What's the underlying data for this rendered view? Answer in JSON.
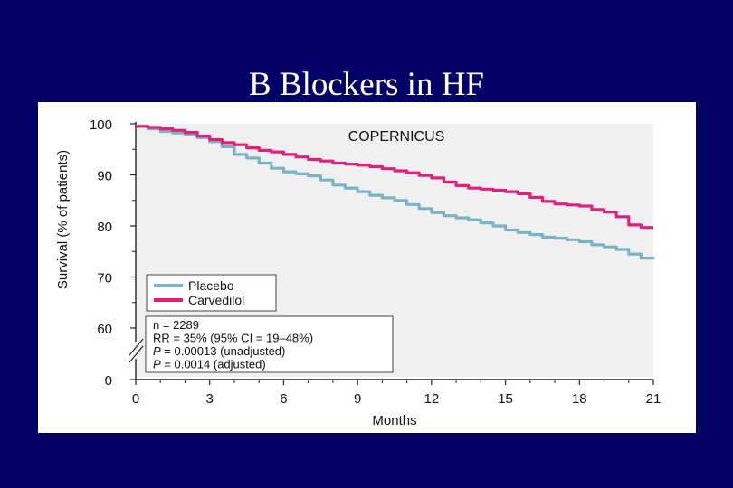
{
  "slide": {
    "title": "B Blockers in HF"
  },
  "chart_data": {
    "type": "line",
    "title": "COPERNICUS",
    "xlabel": "Months",
    "ylabel": "Survival (% of patients)",
    "x_ticks": [
      0,
      3,
      6,
      9,
      12,
      15,
      18,
      21
    ],
    "y_ticks": [
      0,
      60,
      70,
      80,
      90,
      100
    ],
    "xlim": [
      0,
      21
    ],
    "ylim_broken": [
      58,
      100
    ],
    "series": [
      {
        "name": "Placebo",
        "color": "#7ab4c4",
        "x": [
          0,
          0.5,
          1,
          1.5,
          2,
          2.5,
          3,
          3.5,
          4,
          4.5,
          5,
          5.5,
          6,
          6.5,
          7,
          7.5,
          8,
          8.5,
          9,
          9.5,
          10,
          10.5,
          11,
          11.5,
          12,
          12.5,
          13,
          13.5,
          14,
          14.5,
          15,
          15.5,
          16,
          16.5,
          17,
          17.5,
          18,
          18.5,
          19,
          19.5,
          20,
          20.5,
          21
        ],
        "y": [
          99.5,
          99.0,
          98.5,
          98.2,
          97.9,
          97.3,
          96.5,
          95.5,
          94.0,
          93.3,
          92.3,
          91.3,
          90.6,
          90.2,
          89.8,
          89.0,
          88.0,
          87.4,
          86.7,
          86.0,
          85.5,
          85.0,
          84.2,
          83.4,
          82.6,
          82.0,
          81.6,
          81.2,
          80.6,
          80.0,
          79.2,
          78.7,
          78.3,
          77.8,
          77.6,
          77.3,
          76.9,
          76.3,
          75.9,
          75.4,
          74.5,
          73.7,
          73.5
        ]
      },
      {
        "name": "Carvedilol",
        "color": "#e0207a",
        "x": [
          0,
          0.5,
          1,
          1.5,
          2,
          2.5,
          3,
          3.5,
          4,
          4.5,
          5,
          5.5,
          6,
          6.5,
          7,
          7.5,
          8,
          8.5,
          9,
          9.5,
          10,
          10.5,
          11,
          11.5,
          12,
          12.5,
          13,
          13.5,
          14,
          14.5,
          15,
          15.5,
          16,
          16.5,
          17,
          17.5,
          18,
          18.5,
          19,
          19.5,
          20,
          20.5,
          21
        ],
        "y": [
          99.5,
          99.3,
          99.0,
          98.7,
          98.3,
          97.6,
          96.9,
          96.3,
          95.9,
          95.3,
          94.8,
          94.5,
          94.0,
          93.5,
          93.0,
          92.7,
          92.3,
          92.1,
          91.9,
          91.6,
          91.2,
          90.8,
          90.4,
          89.9,
          89.4,
          88.6,
          87.9,
          87.4,
          87.2,
          87.0,
          86.7,
          86.3,
          85.6,
          84.8,
          84.3,
          84.1,
          83.9,
          83.2,
          82.7,
          81.8,
          80.2,
          79.7,
          79.7
        ]
      }
    ],
    "legend": {
      "placement": "lower-left",
      "items": [
        "Placebo",
        "Carvedilol"
      ]
    },
    "stats": {
      "lines": [
        {
          "text": "n = 2289"
        },
        {
          "text": "RR = 35% (95% CI = 19–48%)"
        },
        {
          "italic": "P",
          "text": " = 0.00013 (unadjusted)"
        },
        {
          "italic": "P",
          "text": " = 0.0014 (adjusted)"
        }
      ]
    }
  },
  "icons": {
    "corner": "female-symbol-icon"
  }
}
